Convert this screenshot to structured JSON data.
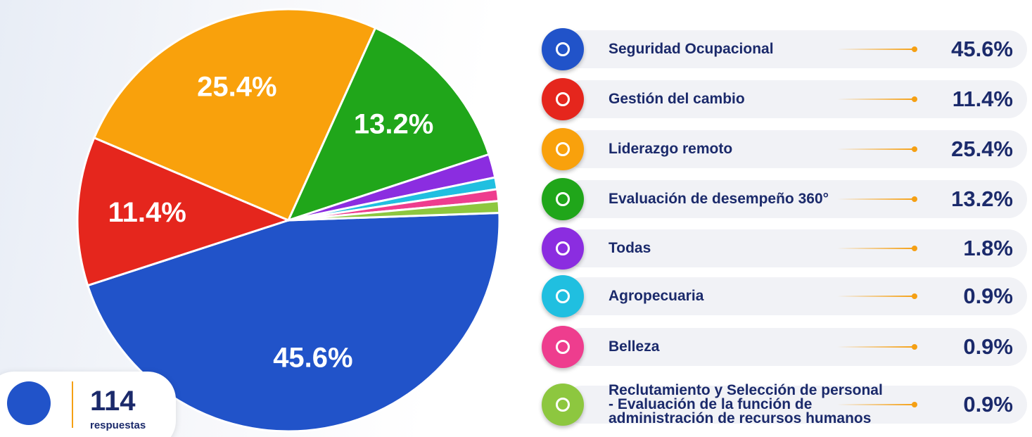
{
  "chart_data": {
    "type": "pie",
    "categories": [
      "Seguridad Ocupacional",
      "Gestión del cambio",
      "Liderazgo remoto",
      "Evaluación de desempeño 360°",
      "Todas",
      "Agropecuaria",
      "Belleza",
      "Reclutamiento y Selección de personal - Evaluación de la función de administración de recursos humanos"
    ],
    "values": [
      45.6,
      11.4,
      25.4,
      13.2,
      1.8,
      0.9,
      0.9,
      0.9
    ],
    "value_labels": [
      "45.6%",
      "11.4%",
      "25.4%",
      "13.2%",
      "1.8%",
      "0.9%",
      "0.9%",
      "0.9%"
    ],
    "colors": [
      "#2153c9",
      "#e5261d",
      "#f9a10c",
      "#20a61a",
      "#8b2de0",
      "#20bfe0",
      "#ee3d8e",
      "#8dc73f"
    ],
    "total": {
      "value": 114,
      "label": "respuestas"
    }
  }
}
